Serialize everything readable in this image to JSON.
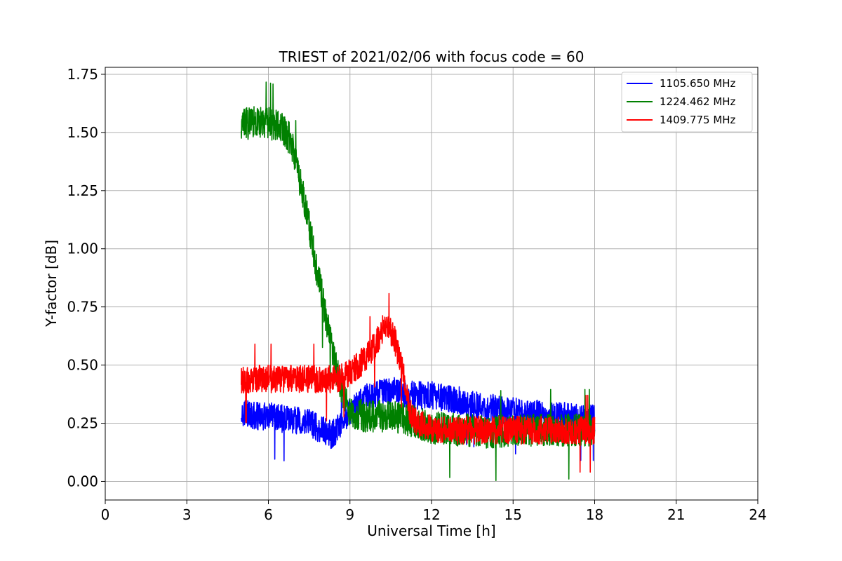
{
  "chart_data": {
    "type": "line",
    "title": "TRIEST of 2021/02/06 with focus code = 60",
    "xlabel": "Universal Time [h]",
    "ylabel": "Y-factor [dB]",
    "xlim": [
      0,
      24
    ],
    "ylim": [
      -0.08,
      1.78
    ],
    "xticks": [
      0,
      3,
      6,
      9,
      12,
      15,
      18,
      21,
      24
    ],
    "xtick_labels": [
      "0",
      "3",
      "6",
      "9",
      "12",
      "15",
      "18",
      "21",
      "24"
    ],
    "yticks": [
      0.0,
      0.25,
      0.5,
      0.75,
      1.0,
      1.25,
      1.5,
      1.75
    ],
    "ytick_labels": [
      "0.00",
      "0.25",
      "0.50",
      "0.75",
      "1.00",
      "1.25",
      "1.50",
      "1.75"
    ],
    "grid": true,
    "legend_position": "top-right",
    "series": [
      {
        "name": "1105.650 MHz",
        "color": "#0000ff",
        "x": [
          5.0,
          5.5,
          6.0,
          6.5,
          7.0,
          7.5,
          8.0,
          8.3,
          8.5,
          9.0,
          9.5,
          10.0,
          10.5,
          11.0,
          11.5,
          12.0,
          12.5,
          13.0,
          13.5,
          14.0,
          14.5,
          15.0,
          15.5,
          16.0,
          16.5,
          17.0,
          17.5,
          18.0
        ],
        "y": [
          0.3,
          0.28,
          0.28,
          0.27,
          0.26,
          0.25,
          0.22,
          0.2,
          0.22,
          0.3,
          0.36,
          0.38,
          0.39,
          0.38,
          0.37,
          0.37,
          0.36,
          0.35,
          0.33,
          0.32,
          0.31,
          0.3,
          0.29,
          0.29,
          0.28,
          0.28,
          0.27,
          0.27
        ],
        "noise": 0.06
      },
      {
        "name": "1224.462 MHz",
        "color": "#008000",
        "x": [
          5.0,
          5.5,
          6.0,
          6.5,
          6.8,
          7.0,
          7.25,
          7.5,
          7.75,
          8.0,
          8.25,
          8.5,
          8.8,
          9.0,
          9.5,
          10.0,
          10.5,
          11.0,
          11.5,
          12.0,
          12.5,
          13.0,
          13.5,
          14.0,
          15.0,
          16.0,
          17.0,
          18.0
        ],
        "y": [
          1.53,
          1.55,
          1.54,
          1.52,
          1.47,
          1.38,
          1.25,
          1.1,
          0.93,
          0.78,
          0.63,
          0.48,
          0.36,
          0.3,
          0.28,
          0.28,
          0.28,
          0.27,
          0.25,
          0.23,
          0.23,
          0.22,
          0.22,
          0.21,
          0.22,
          0.22,
          0.22,
          0.22
        ],
        "noise": 0.07
      },
      {
        "name": "1409.775 MHz",
        "color": "#ff0000",
        "x": [
          5.0,
          5.5,
          6.0,
          6.5,
          7.0,
          7.5,
          8.0,
          8.5,
          9.0,
          9.5,
          10.0,
          10.3,
          10.6,
          11.0,
          11.2,
          11.5,
          12.0,
          12.5,
          13.0,
          14.0,
          15.0,
          16.0,
          17.0,
          18.0
        ],
        "y": [
          0.43,
          0.44,
          0.44,
          0.44,
          0.44,
          0.44,
          0.44,
          0.44,
          0.47,
          0.52,
          0.6,
          0.68,
          0.63,
          0.45,
          0.3,
          0.25,
          0.23,
          0.22,
          0.22,
          0.22,
          0.22,
          0.22,
          0.22,
          0.22
        ],
        "noise": 0.06
      }
    ]
  }
}
